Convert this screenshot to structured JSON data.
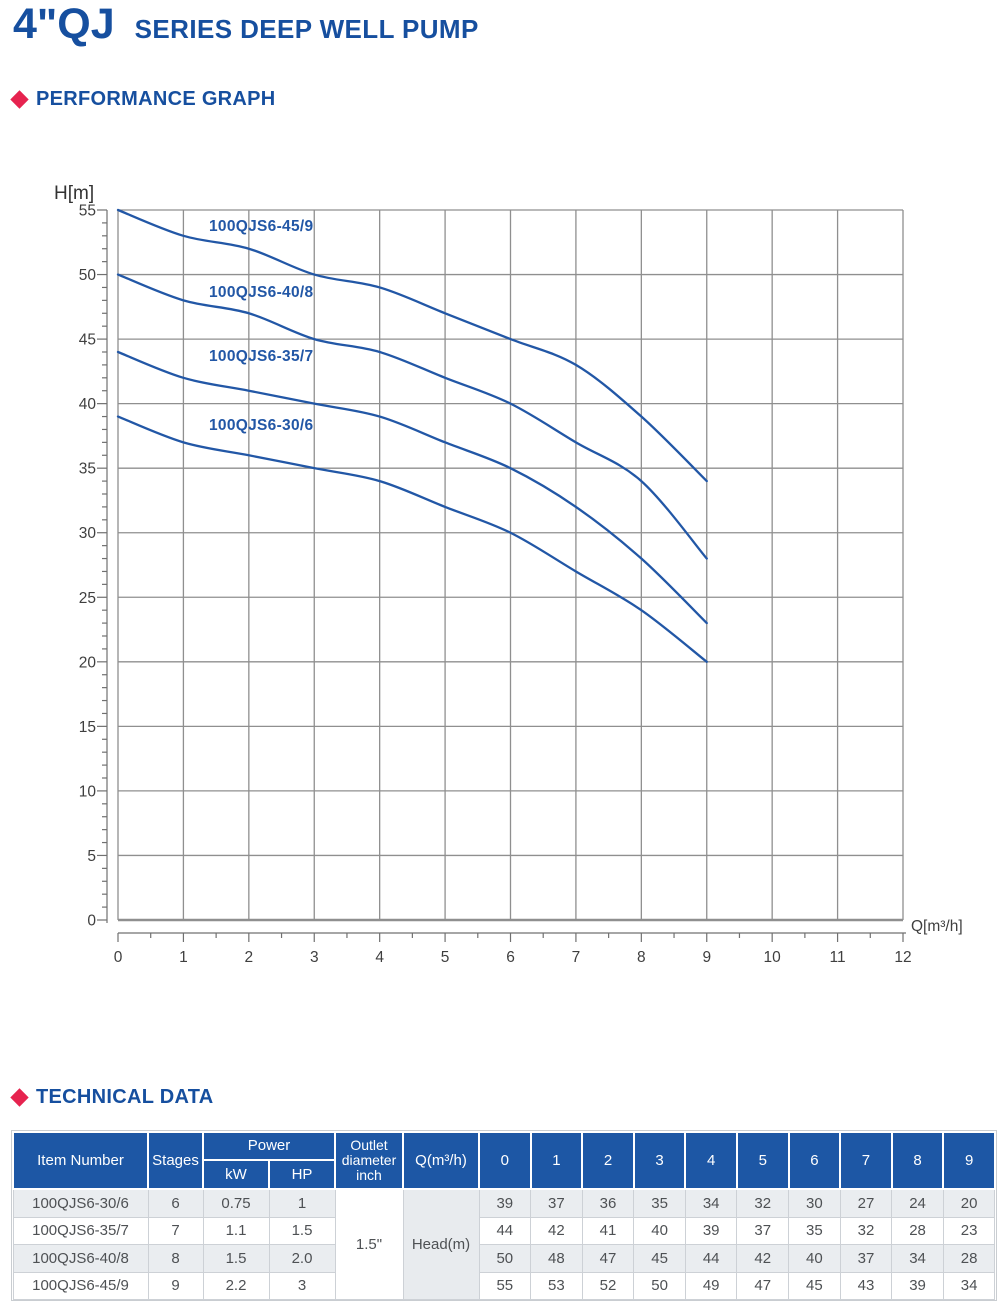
{
  "page": {
    "title_main": "4\"QJ",
    "title_sub": "SERIES DEEP WELL PUMP"
  },
  "sections": {
    "performance": "PERFORMANCE GRAPH",
    "technical": "TECHNICAL DATA"
  },
  "colors": {
    "brand_blue": "#164f9f",
    "bullet_red": "#e6234f",
    "curve_blue": "#2257a6",
    "grid_gray": "#8f8f8f",
    "table_header_bg": "#1d57a5",
    "row_stripe": "#eaedf0"
  },
  "chart_data": {
    "type": "line",
    "title": "",
    "xlabel": "Q[m³/h]",
    "ylabel": "H[m]",
    "xlim": [
      0,
      12
    ],
    "ylim": [
      0,
      55
    ],
    "x_ticks": [
      0,
      1,
      2,
      3,
      4,
      5,
      6,
      7,
      8,
      9,
      10,
      11,
      12
    ],
    "y_ticks": [
      0,
      5,
      10,
      15,
      20,
      25,
      30,
      35,
      40,
      45,
      50,
      55
    ],
    "x_minor_step": 0.5,
    "y_minor_step": 1,
    "grid": true,
    "legend": "inline curve labels",
    "x": [
      0,
      1,
      2,
      3,
      4,
      5,
      6,
      7,
      8,
      9
    ],
    "series": [
      {
        "name": "100QJS6-45/9",
        "values": [
          55,
          53,
          52,
          50,
          49,
          47,
          45,
          43,
          39,
          34
        ]
      },
      {
        "name": "100QJS6-40/8",
        "values": [
          50,
          48,
          47,
          45,
          44,
          42,
          40,
          37,
          34,
          28
        ]
      },
      {
        "name": "100QJS6-35/7",
        "values": [
          44,
          42,
          41,
          40,
          39,
          37,
          35,
          32,
          28,
          23
        ]
      },
      {
        "name": "100QJS6-30/6",
        "values": [
          39,
          37,
          36,
          35,
          34,
          32,
          30,
          27,
          24,
          20
        ]
      }
    ]
  },
  "table": {
    "header": {
      "item_number": "Item Number",
      "stages": "Stages",
      "power": "Power",
      "kw": "kW",
      "hp": "HP",
      "outlet": "Outlet diameter inch",
      "q": "Q(m³/h)"
    },
    "q_columns": [
      "0",
      "1",
      "2",
      "3",
      "4",
      "5",
      "6",
      "7",
      "8",
      "9"
    ],
    "outlet_value": "1.5\"",
    "head_label": "Head(m)",
    "rows": [
      {
        "item": "100QJS6-30/6",
        "stages": "6",
        "kw": "0.75",
        "hp": "1",
        "head": [
          "39",
          "37",
          "36",
          "35",
          "34",
          "32",
          "30",
          "27",
          "24",
          "20"
        ]
      },
      {
        "item": "100QJS6-35/7",
        "stages": "7",
        "kw": "1.1",
        "hp": "1.5",
        "head": [
          "44",
          "42",
          "41",
          "40",
          "39",
          "37",
          "35",
          "32",
          "28",
          "23"
        ]
      },
      {
        "item": "100QJS6-40/8",
        "stages": "8",
        "kw": "1.5",
        "hp": "2.0",
        "head": [
          "50",
          "48",
          "47",
          "45",
          "44",
          "42",
          "40",
          "37",
          "34",
          "28"
        ]
      },
      {
        "item": "100QJS6-45/9",
        "stages": "9",
        "kw": "2.2",
        "hp": "3",
        "head": [
          "55",
          "53",
          "52",
          "50",
          "49",
          "47",
          "45",
          "43",
          "39",
          "34"
        ]
      }
    ]
  }
}
